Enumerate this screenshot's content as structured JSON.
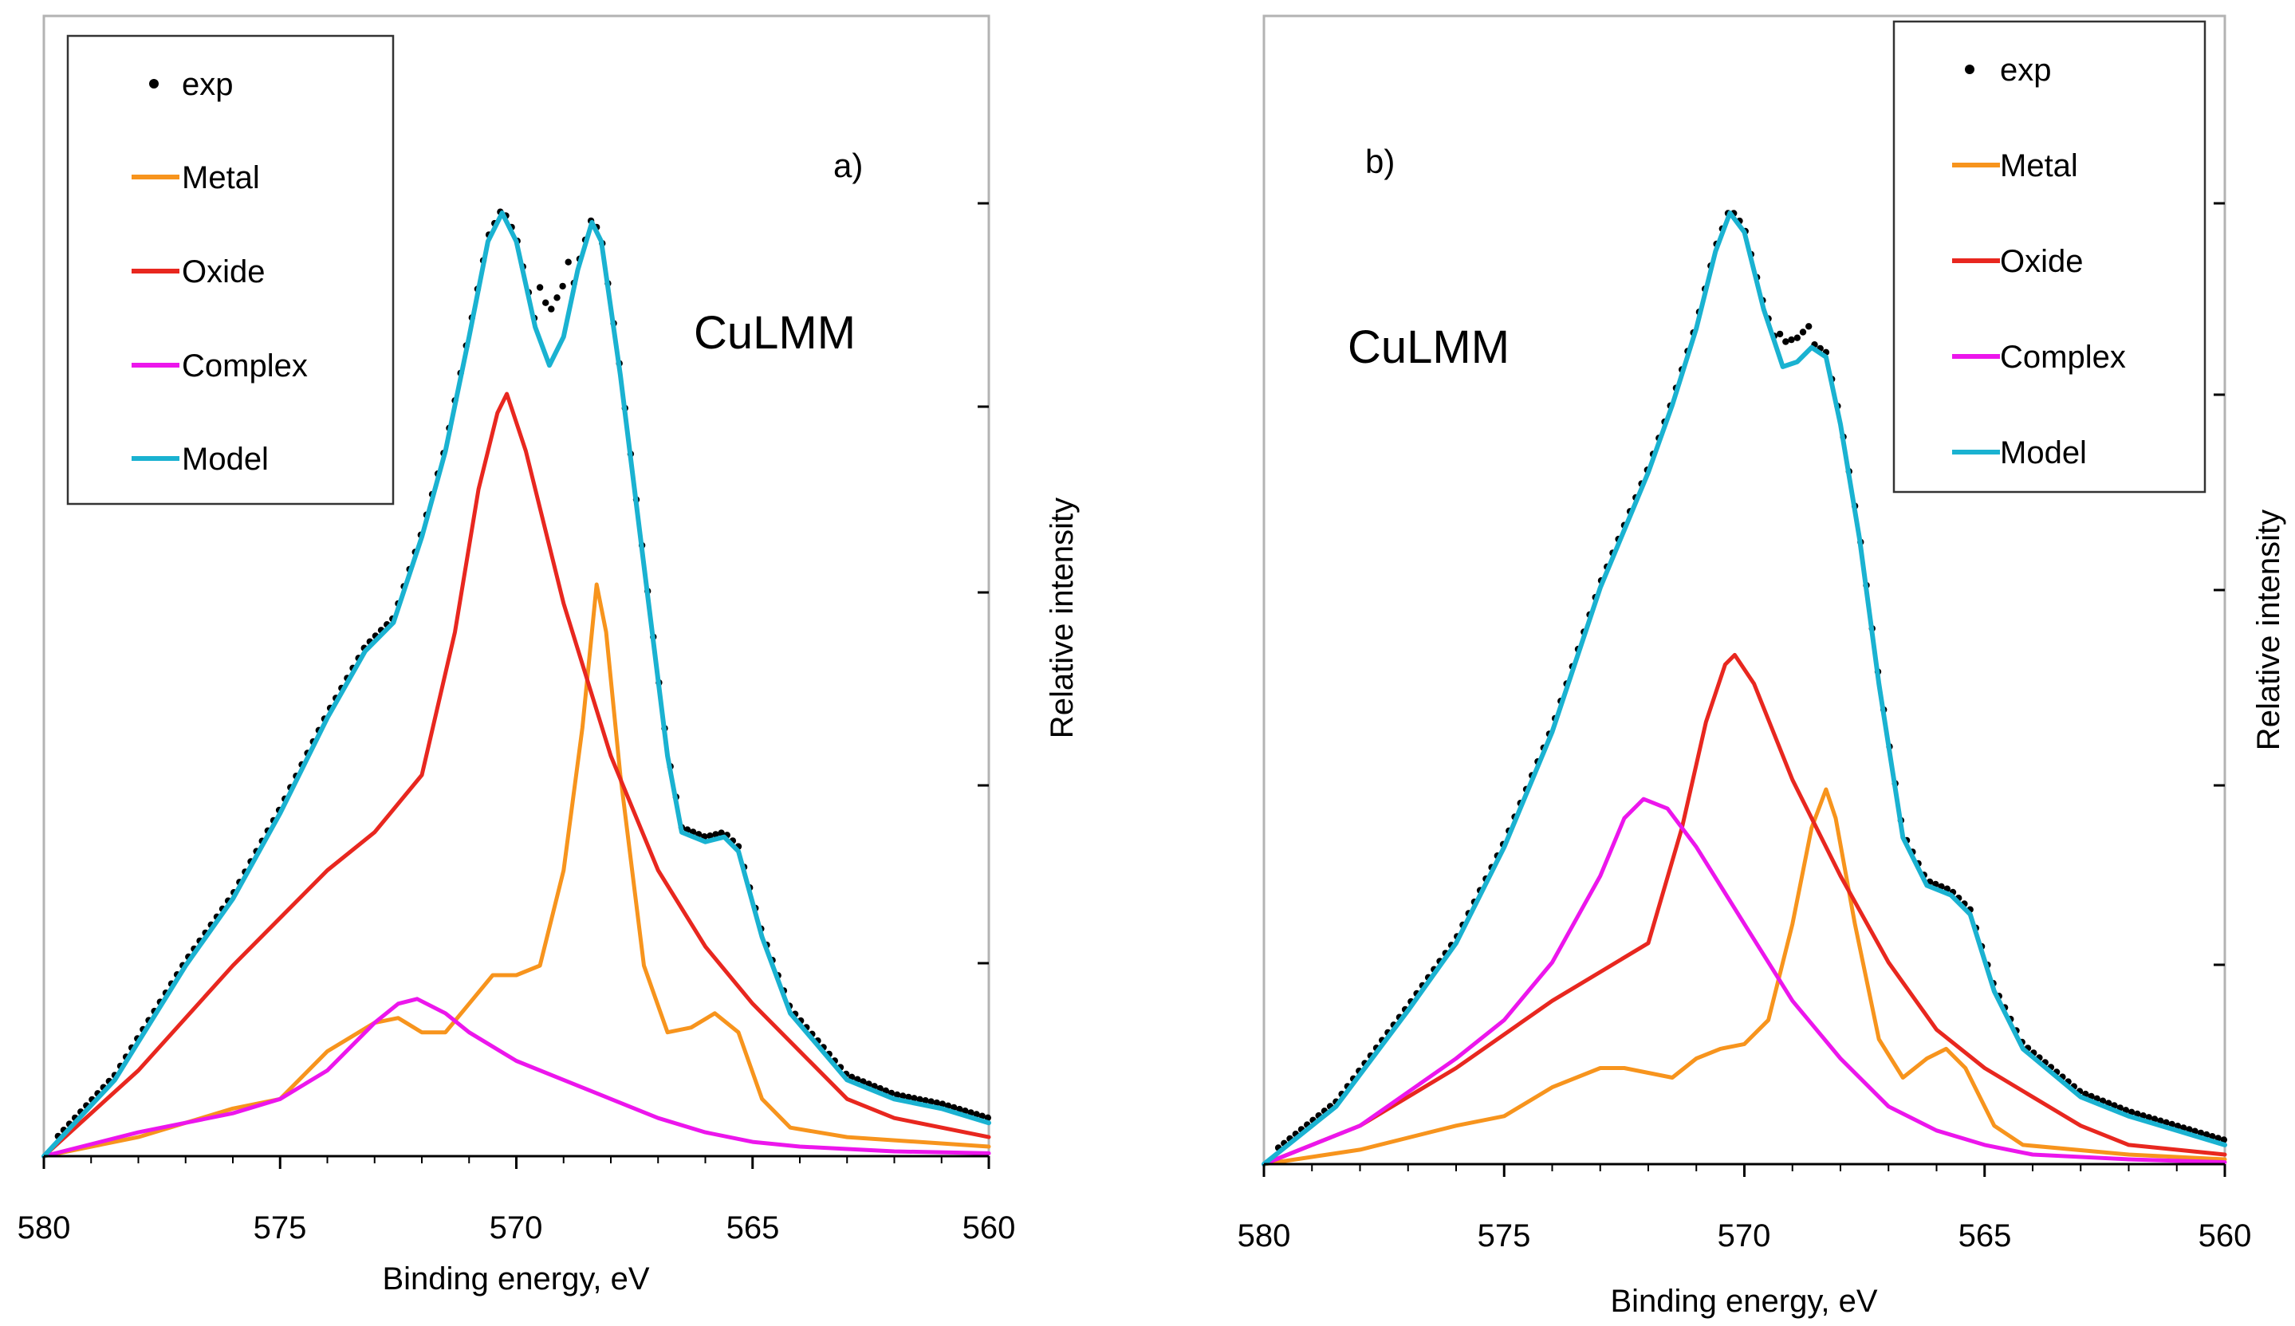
{
  "chart_data": [
    {
      "panel": "a)",
      "type": "line",
      "annotation": "CuLMM",
      "xlabel": "Binding energy, eV",
      "ylabel": "Relative intensity",
      "xlim": [
        580,
        560
      ],
      "ylim": [
        0,
        1
      ],
      "x_ticks": [
        580,
        575,
        570,
        565,
        560
      ],
      "legend": [
        "exp",
        "Metal",
        "Oxide",
        "Complex",
        "Model"
      ],
      "series": [
        {
          "name": "Metal",
          "color": "#F7941D",
          "points": [
            [
              580,
              0.0
            ],
            [
              578,
              0.02
            ],
            [
              576,
              0.05
            ],
            [
              575,
              0.06
            ],
            [
              574,
              0.11
            ],
            [
              573,
              0.14
            ],
            [
              572.5,
              0.145
            ],
            [
              572,
              0.13
            ],
            [
              571.5,
              0.13
            ],
            [
              571,
              0.16
            ],
            [
              570.5,
              0.19
            ],
            [
              570,
              0.19
            ],
            [
              569.5,
              0.2
            ],
            [
              569,
              0.3
            ],
            [
              568.6,
              0.45
            ],
            [
              568.3,
              0.6
            ],
            [
              568.1,
              0.55
            ],
            [
              567.8,
              0.4
            ],
            [
              567.3,
              0.2
            ],
            [
              566.8,
              0.13
            ],
            [
              566.3,
              0.135
            ],
            [
              565.8,
              0.15
            ],
            [
              565.3,
              0.13
            ],
            [
              564.8,
              0.06
            ],
            [
              564.2,
              0.03
            ],
            [
              563,
              0.02
            ],
            [
              560,
              0.01
            ]
          ]
        },
        {
          "name": "Oxide",
          "color": "#E8271F",
          "points": [
            [
              580,
              0.0
            ],
            [
              578,
              0.09
            ],
            [
              576,
              0.2
            ],
            [
              574,
              0.3
            ],
            [
              573,
              0.34
            ],
            [
              572,
              0.4
            ],
            [
              571.3,
              0.55
            ],
            [
              570.8,
              0.7
            ],
            [
              570.4,
              0.78
            ],
            [
              570.2,
              0.8
            ],
            [
              569.8,
              0.74
            ],
            [
              569,
              0.58
            ],
            [
              568,
              0.42
            ],
            [
              567,
              0.3
            ],
            [
              566,
              0.22
            ],
            [
              565,
              0.16
            ],
            [
              564,
              0.11
            ],
            [
              563,
              0.06
            ],
            [
              562,
              0.04
            ],
            [
              560,
              0.02
            ]
          ]
        },
        {
          "name": "Complex",
          "color": "#EC16EC",
          "points": [
            [
              580,
              0.0
            ],
            [
              578,
              0.025
            ],
            [
              576,
              0.045
            ],
            [
              575,
              0.06
            ],
            [
              574,
              0.09
            ],
            [
              573,
              0.14
            ],
            [
              572.5,
              0.16
            ],
            [
              572.1,
              0.165
            ],
            [
              571.5,
              0.15
            ],
            [
              571,
              0.13
            ],
            [
              570,
              0.1
            ],
            [
              569,
              0.08
            ],
            [
              568,
              0.06
            ],
            [
              567,
              0.04
            ],
            [
              566,
              0.025
            ],
            [
              565,
              0.015
            ],
            [
              564,
              0.01
            ],
            [
              562,
              0.005
            ],
            [
              560,
              0.003
            ]
          ]
        },
        {
          "name": "Model",
          "color": "#1AB2D1",
          "points": [
            [
              580,
              0.0
            ],
            [
              578.5,
              0.08
            ],
            [
              577,
              0.2
            ],
            [
              576,
              0.27
            ],
            [
              575,
              0.36
            ],
            [
              574,
              0.46
            ],
            [
              573.2,
              0.53
            ],
            [
              572.6,
              0.56
            ],
            [
              572,
              0.65
            ],
            [
              571.5,
              0.74
            ],
            [
              571,
              0.86
            ],
            [
              570.6,
              0.96
            ],
            [
              570.3,
              0.99
            ],
            [
              570,
              0.96
            ],
            [
              569.6,
              0.87
            ],
            [
              569.3,
              0.83
            ],
            [
              569,
              0.86
            ],
            [
              568.7,
              0.93
            ],
            [
              568.4,
              0.98
            ],
            [
              568.2,
              0.96
            ],
            [
              567.8,
              0.82
            ],
            [
              567.3,
              0.62
            ],
            [
              566.8,
              0.42
            ],
            [
              566.5,
              0.34
            ],
            [
              566,
              0.33
            ],
            [
              565.6,
              0.335
            ],
            [
              565.3,
              0.32
            ],
            [
              564.8,
              0.23
            ],
            [
              564.2,
              0.15
            ],
            [
              563,
              0.08
            ],
            [
              562,
              0.06
            ],
            [
              561,
              0.05
            ],
            [
              560,
              0.035
            ]
          ]
        }
      ]
    },
    {
      "panel": "b)",
      "type": "line",
      "annotation": "CuLMM",
      "xlabel": "Binding energy, eV",
      "ylabel": "Relative intensity",
      "xlim": [
        580,
        560
      ],
      "ylim": [
        0,
        1
      ],
      "x_ticks": [
        580,
        575,
        570,
        565,
        560
      ],
      "legend": [
        "exp",
        "Metal",
        "Oxide",
        "Complex",
        "Model"
      ],
      "series": [
        {
          "name": "Metal",
          "color": "#F7941D",
          "points": [
            [
              580,
              0.0
            ],
            [
              578,
              0.015
            ],
            [
              576,
              0.04
            ],
            [
              575,
              0.05
            ],
            [
              574,
              0.08
            ],
            [
              573,
              0.1
            ],
            [
              572.5,
              0.1
            ],
            [
              572,
              0.095
            ],
            [
              571.5,
              0.09
            ],
            [
              571,
              0.11
            ],
            [
              570.5,
              0.12
            ],
            [
              570,
              0.125
            ],
            [
              569.5,
              0.15
            ],
            [
              569,
              0.25
            ],
            [
              568.6,
              0.35
            ],
            [
              568.3,
              0.39
            ],
            [
              568.1,
              0.36
            ],
            [
              567.7,
              0.25
            ],
            [
              567.2,
              0.13
            ],
            [
              566.7,
              0.09
            ],
            [
              566.2,
              0.11
            ],
            [
              565.8,
              0.12
            ],
            [
              565.4,
              0.1
            ],
            [
              564.8,
              0.04
            ],
            [
              564.2,
              0.02
            ],
            [
              562,
              0.01
            ],
            [
              560,
              0.005
            ]
          ]
        },
        {
          "name": "Oxide",
          "color": "#E8271F",
          "points": [
            [
              580,
              0.0
            ],
            [
              578,
              0.04
            ],
            [
              576,
              0.1
            ],
            [
              574,
              0.17
            ],
            [
              573,
              0.2
            ],
            [
              572,
              0.23
            ],
            [
              571.3,
              0.35
            ],
            [
              570.8,
              0.46
            ],
            [
              570.4,
              0.52
            ],
            [
              570.2,
              0.53
            ],
            [
              569.8,
              0.5
            ],
            [
              569,
              0.4
            ],
            [
              568,
              0.3
            ],
            [
              567,
              0.21
            ],
            [
              566,
              0.14
            ],
            [
              565,
              0.1
            ],
            [
              564,
              0.07
            ],
            [
              563,
              0.04
            ],
            [
              562,
              0.02
            ],
            [
              560,
              0.01
            ]
          ]
        },
        {
          "name": "Complex",
          "color": "#EC16EC",
          "points": [
            [
              580,
              0.0
            ],
            [
              578,
              0.04
            ],
            [
              576,
              0.11
            ],
            [
              575,
              0.15
            ],
            [
              574,
              0.21
            ],
            [
              573,
              0.3
            ],
            [
              572.5,
              0.36
            ],
            [
              572.1,
              0.38
            ],
            [
              571.6,
              0.37
            ],
            [
              571,
              0.33
            ],
            [
              570,
              0.25
            ],
            [
              569,
              0.17
            ],
            [
              568,
              0.11
            ],
            [
              567,
              0.06
            ],
            [
              566,
              0.035
            ],
            [
              565,
              0.02
            ],
            [
              564,
              0.01
            ],
            [
              562,
              0.005
            ],
            [
              560,
              0.002
            ]
          ]
        },
        {
          "name": "Model",
          "color": "#1AB2D1",
          "points": [
            [
              580,
              0.0
            ],
            [
              578.5,
              0.06
            ],
            [
              577,
              0.16
            ],
            [
              576,
              0.23
            ],
            [
              575,
              0.33
            ],
            [
              574,
              0.45
            ],
            [
              573,
              0.6
            ],
            [
              572,
              0.72
            ],
            [
              571.5,
              0.79
            ],
            [
              571,
              0.87
            ],
            [
              570.6,
              0.95
            ],
            [
              570.3,
              0.99
            ],
            [
              570,
              0.97
            ],
            [
              569.6,
              0.89
            ],
            [
              569.2,
              0.83
            ],
            [
              568.9,
              0.835
            ],
            [
              568.6,
              0.85
            ],
            [
              568.3,
              0.84
            ],
            [
              568,
              0.77
            ],
            [
              567.6,
              0.65
            ],
            [
              567.2,
              0.5
            ],
            [
              566.7,
              0.34
            ],
            [
              566.2,
              0.29
            ],
            [
              565.7,
              0.28
            ],
            [
              565.3,
              0.26
            ],
            [
              564.8,
              0.18
            ],
            [
              564.2,
              0.12
            ],
            [
              563,
              0.07
            ],
            [
              562,
              0.05
            ],
            [
              561,
              0.035
            ],
            [
              560,
              0.02
            ]
          ]
        }
      ]
    }
  ]
}
